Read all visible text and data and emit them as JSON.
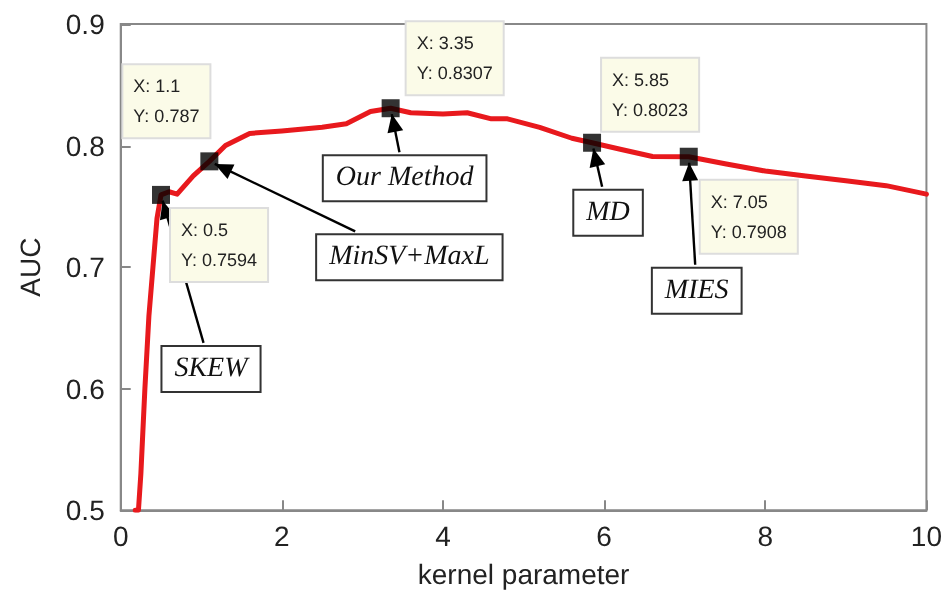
{
  "chart_data": {
    "type": "line",
    "xlabel": "kernel parameter",
    "ylabel": "AUC",
    "xlim": [
      0,
      10
    ],
    "xticks": [
      0,
      2,
      4,
      6,
      8,
      10
    ],
    "ylim": [
      0.5,
      0.9
    ],
    "yticks": [
      0.5,
      0.6,
      0.7,
      0.8,
      0.9
    ],
    "series": [
      {
        "color": "#e8191d",
        "line_style": "solid",
        "marker": "none",
        "x": [
          0.18,
          0.22,
          0.25,
          0.3,
          0.35,
          0.4,
          0.45,
          0.5,
          0.6,
          0.7,
          0.9,
          1.1,
          1.3,
          1.6,
          2.0,
          2.5,
          2.8,
          3.1,
          3.35,
          3.6,
          4.0,
          4.3,
          4.6,
          4.8,
          5.2,
          5.6,
          5.85,
          6.2,
          6.6,
          7.05,
          7.5,
          8.0,
          8.5,
          9.0,
          9.5,
          10.0
        ],
        "values": [
          0.5,
          0.5,
          0.53,
          0.6,
          0.66,
          0.7,
          0.74,
          0.7594,
          0.762,
          0.76,
          0.775,
          0.787,
          0.8,
          0.81,
          0.812,
          0.815,
          0.818,
          0.828,
          0.8307,
          0.827,
          0.826,
          0.827,
          0.822,
          0.822,
          0.815,
          0.806,
          0.8023,
          0.797,
          0.791,
          0.7908,
          0.785,
          0.779,
          0.775,
          0.771,
          0.767,
          0.76
        ]
      },
      {
        "type": "scatter",
        "color": "#000000",
        "marker": "square",
        "x": [
          0.5,
          1.1,
          3.35,
          5.85,
          7.05
        ],
        "values": [
          0.7594,
          0.787,
          0.8307,
          0.8023,
          0.7908
        ]
      }
    ],
    "annotations": [
      {
        "text": "X: 0.5\nY: 0.7594",
        "x": 0.5,
        "y": 0.7594
      },
      {
        "text": "X: 1.1\nY: 0.787",
        "x": 1.1,
        "y": 0.787
      },
      {
        "text": "X: 3.35\nY: 0.8307",
        "x": 3.35,
        "y": 0.8307
      },
      {
        "text": "X: 5.85\nY: 0.8023",
        "x": 5.85,
        "y": 0.8023
      },
      {
        "text": "X: 7.05\nY: 0.7908",
        "x": 7.05,
        "y": 0.7908
      },
      {
        "text": "SKEW",
        "x": 0.5,
        "y": 0.7594
      },
      {
        "text": "MinSV+MaxL",
        "x": 1.1,
        "y": 0.787
      },
      {
        "text": "Our Method",
        "x": 3.35,
        "y": 0.8307
      },
      {
        "text": "MD",
        "x": 5.85,
        "y": 0.8023
      },
      {
        "text": "MIES",
        "x": 7.05,
        "y": 0.7908
      }
    ]
  }
}
